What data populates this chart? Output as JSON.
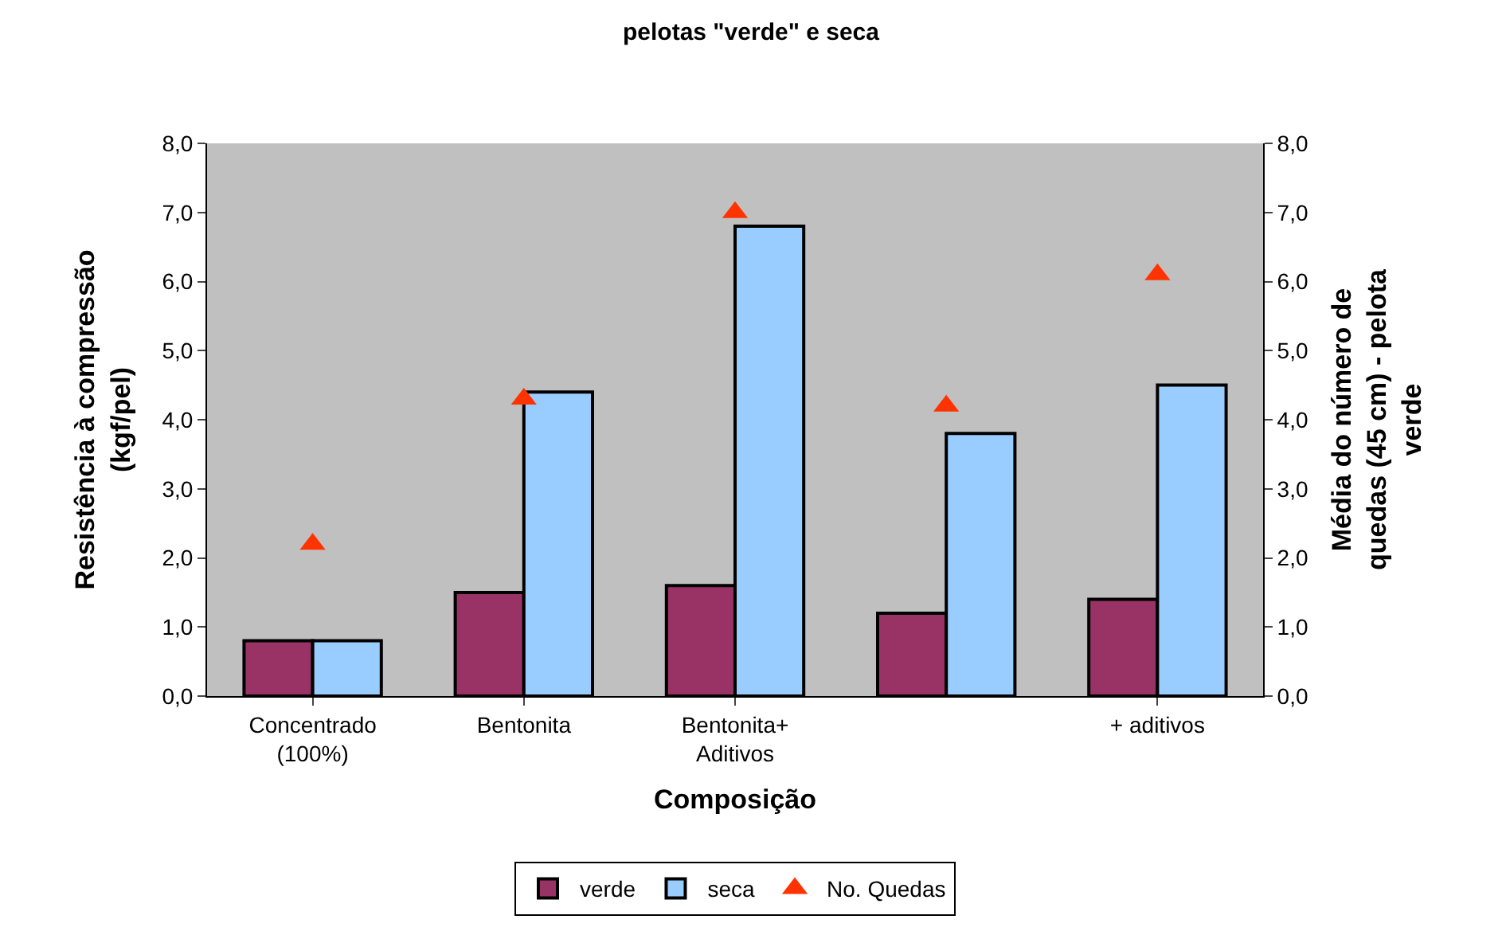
{
  "chart_data": {
    "type": "bar",
    "title": "pelotas \"verde\" e seca",
    "xlabel": "Composição",
    "ylabel": "Resistência à compressão\n(kgf/pel)",
    "y2label": "Média do número de\nquedas (45 cm) - pelota\nverde",
    "categories": [
      "Concentrado\n(100%)",
      "Bentonita",
      "Bentonita+\nAditivos",
      null,
      "+ aditivos"
    ],
    "series": [
      {
        "name": "verde",
        "color": "#993366",
        "values": [
          0.8,
          1.5,
          1.6,
          1.2,
          1.4
        ]
      },
      {
        "name": "seca",
        "color": "#99ccff",
        "values": [
          0.8,
          4.4,
          6.8,
          3.8,
          4.5
        ]
      },
      {
        "name": "No. Quedas",
        "type": "scatter",
        "axis": "y2",
        "color": "#ff3300",
        "marker": "triangle",
        "values": [
          2.2,
          4.3,
          7.0,
          4.2,
          6.1
        ]
      }
    ],
    "ylim": [
      0,
      8
    ],
    "yticks": [
      {
        "value": 0,
        "label": "0,0"
      },
      {
        "value": 1,
        "label": "1,0"
      },
      {
        "value": 2,
        "label": "2,0"
      },
      {
        "value": 3,
        "label": "3,0"
      },
      {
        "value": 4,
        "label": "4,0"
      },
      {
        "value": 5,
        "label": "5,0"
      },
      {
        "value": 6,
        "label": "6,0"
      },
      {
        "value": 7,
        "label": "7,0"
      },
      {
        "value": 8,
        "label": "8,0"
      }
    ],
    "y2lim": [
      0,
      8
    ],
    "y2ticks": [
      {
        "value": 0,
        "label": "0,0"
      },
      {
        "value": 1,
        "label": "1,0"
      },
      {
        "value": 2,
        "label": "2,0"
      },
      {
        "value": 3,
        "label": "3,0"
      },
      {
        "value": 4,
        "label": "4,0"
      },
      {
        "value": 5,
        "label": "5,0"
      },
      {
        "value": 6,
        "label": "6,0"
      },
      {
        "value": 7,
        "label": "7,0"
      },
      {
        "value": 8,
        "label": "8,0"
      }
    ],
    "grid": false,
    "legend": "bottom"
  }
}
